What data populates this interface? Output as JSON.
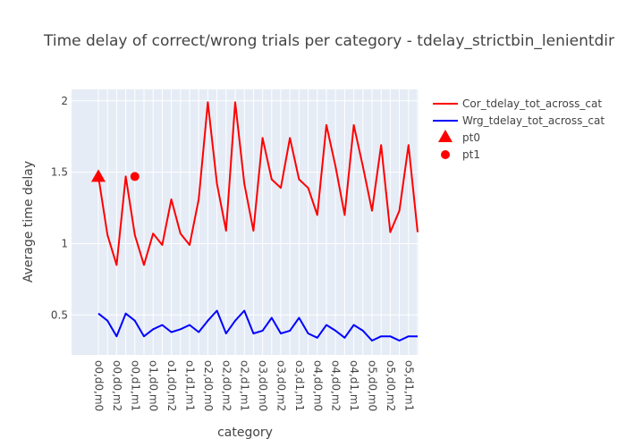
{
  "chart_data": {
    "type": "line",
    "title": "Time delay of correct/wrong trials per category - tdelay_strictbin_lenientdir",
    "xlabel": "category",
    "ylabel": "Average time delay",
    "ylim": [
      0.22,
      2.08
    ],
    "yticks": [
      0.5,
      1,
      1.5,
      2
    ],
    "ytick_labels": [
      "0.5",
      "1",
      "1.5",
      "2"
    ],
    "grid": true,
    "legend_position": "top-right",
    "background": "#e5ecf6",
    "xtick_labels": [
      "o0,d0,m0",
      "o0,d0,m2",
      "o0,d1,m1",
      "o1,d0,m0",
      "o1,d0,m2",
      "o1,d1,m1",
      "o2,d0,m0",
      "o2,d0,m2",
      "o2,d1,m1",
      "o3,d0,m0",
      "o3,d0,m2",
      "o3,d1,m1",
      "o4,d0,m0",
      "o4,d0,m2",
      "o4,d1,m1",
      "o5,d0,m0",
      "o5,d0,m2",
      "o5,d1,m1"
    ],
    "x_count": 36,
    "series": [
      {
        "name": "Cor_tdelay_tot_across_cat",
        "color": "#ff0000",
        "values": [
          1.47,
          1.06,
          0.85,
          1.47,
          1.06,
          0.85,
          1.07,
          0.99,
          1.31,
          1.07,
          0.99,
          1.31,
          1.99,
          1.42,
          1.09,
          1.99,
          1.42,
          1.09,
          1.74,
          1.45,
          1.39,
          1.74,
          1.45,
          1.39,
          1.2,
          1.83,
          1.54,
          1.2,
          1.83,
          1.54,
          1.23,
          1.69,
          1.08,
          1.23,
          1.69,
          1.08
        ]
      },
      {
        "name": "Wrg_tdelay_tot_across_cat",
        "color": "#0000ff",
        "values": [
          0.51,
          0.46,
          0.35,
          0.51,
          0.46,
          0.35,
          0.4,
          0.43,
          0.38,
          0.4,
          0.43,
          0.38,
          0.46,
          0.53,
          0.37,
          0.46,
          0.53,
          0.37,
          0.39,
          0.48,
          0.37,
          0.39,
          0.48,
          0.37,
          0.34,
          0.43,
          0.39,
          0.34,
          0.43,
          0.39,
          0.32,
          0.35,
          0.35,
          0.32,
          0.35,
          0.35
        ]
      }
    ],
    "markers": [
      {
        "name": "pt0",
        "symbol": "triangle-up",
        "color": "#ff0000",
        "x": "o0,d0,m0",
        "y": 1.47
      },
      {
        "name": "pt1",
        "symbol": "circle",
        "color": "#ff0000",
        "x": "o0,d1,m1",
        "y": 1.47
      }
    ]
  }
}
